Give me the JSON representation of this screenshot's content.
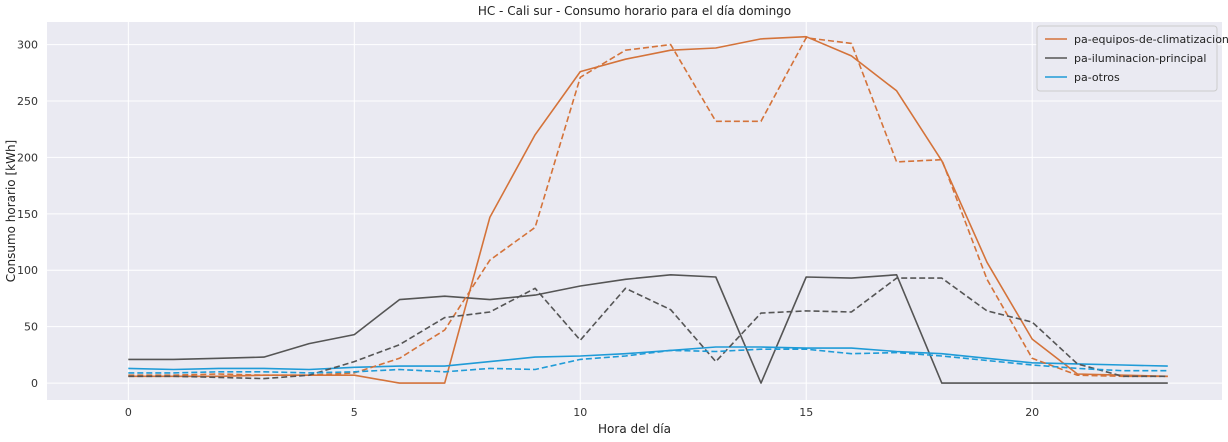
{
  "chart_data": {
    "type": "line",
    "title": "HC - Cali sur - Consumo horario para el día domingo",
    "xlabel": "Hora del día",
    "ylabel": "Consumo horario [kWh]",
    "xlim": [
      -1.8,
      24.2
    ],
    "ylim": [
      -15,
      320
    ],
    "xticks": [
      0,
      5,
      10,
      15,
      20
    ],
    "yticks": [
      0,
      50,
      100,
      150,
      200,
      250,
      300
    ],
    "grid": true,
    "legend_position": "top-right",
    "x": [
      0,
      1,
      2,
      3,
      4,
      5,
      6,
      7,
      8,
      9,
      10,
      11,
      12,
      13,
      14,
      15,
      16,
      17,
      18,
      19,
      20,
      21,
      22,
      23
    ],
    "series": [
      {
        "name": "pa-equipos-de-climatizacion",
        "color": "#d4733a",
        "style": "solid",
        "values": [
          6,
          6,
          6,
          7,
          7,
          7,
          0,
          0,
          147,
          220,
          276,
          287,
          295,
          297,
          305,
          307,
          290,
          259,
          197,
          107,
          39,
          8,
          7,
          6
        ]
      },
      {
        "name": "pa-iluminacion-principal",
        "color": "#555555",
        "style": "solid",
        "values": [
          21,
          21,
          22,
          23,
          35,
          43,
          74,
          77,
          74,
          78,
          86,
          92,
          96,
          94,
          0,
          94,
          93,
          96,
          0,
          0,
          0,
          0,
          0,
          0
        ]
      },
      {
        "name": "pa-otros",
        "color": "#1f9bd7",
        "style": "solid",
        "values": [
          13,
          12,
          13,
          13,
          12,
          14,
          15,
          15,
          19,
          23,
          24,
          26,
          29,
          32,
          32,
          31,
          31,
          28,
          26,
          22,
          18,
          17,
          16,
          15
        ]
      },
      {
        "color": "#d4733a",
        "style": "dashed",
        "values": [
          7,
          7,
          8,
          7,
          7,
          9,
          22,
          47,
          109,
          138,
          271,
          295,
          300,
          232,
          232,
          306,
          301,
          196,
          198,
          92,
          22,
          7,
          6,
          6
        ]
      },
      {
        "color": "#555555",
        "style": "dashed",
        "values": [
          6,
          6,
          5,
          4,
          7,
          19,
          34,
          58,
          63,
          84,
          38,
          84,
          65,
          19,
          62,
          64,
          63,
          93,
          93,
          64,
          54,
          17,
          6,
          6
        ]
      },
      {
        "color": "#1f9bd7",
        "style": "dashed",
        "values": [
          9,
          9,
          10,
          10,
          9,
          10,
          12,
          10,
          13,
          12,
          21,
          24,
          29,
          28,
          30,
          30,
          26,
          27,
          24,
          20,
          16,
          13,
          11,
          11
        ]
      }
    ]
  }
}
